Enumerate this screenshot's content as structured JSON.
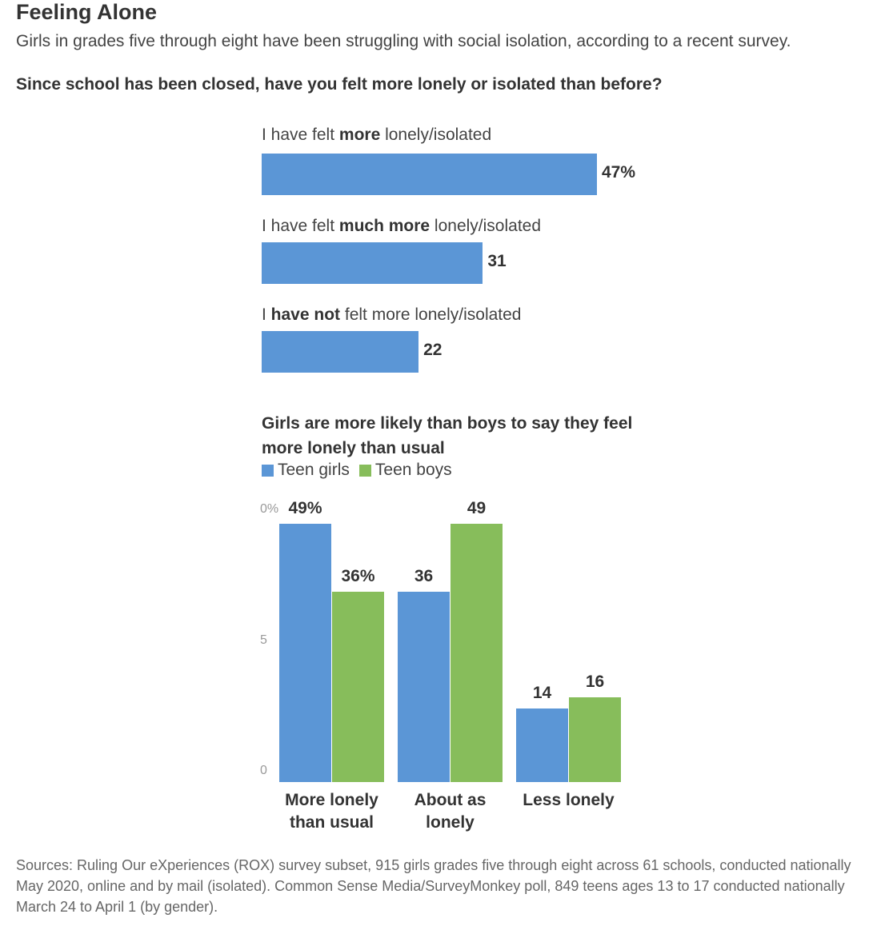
{
  "header": {
    "title": "Feeling Alone",
    "subtitle": "Girls in grades five through eight have been struggling with social isolation, according to a recent survey.",
    "question": "Since school has been closed, have you felt more lonely or isolated than before?"
  },
  "colors": {
    "girls": "#5b96d6",
    "boys": "#87bd5b"
  },
  "chart_data": [
    {
      "type": "bar",
      "orientation": "horizontal",
      "title": "Since school has been closed, have you felt more lonely or isolated than before?",
      "categories": [
        {
          "pre": "I have felt ",
          "bold": "more",
          "post": " lonely/isolated"
        },
        {
          "pre": "I have felt ",
          "bold": "much more",
          "post": " lonely/isolated"
        },
        {
          "pre": "I ",
          "bold": "have not",
          "post": " felt more lonely/isolated"
        }
      ],
      "values": [
        47,
        31,
        22
      ],
      "value_labels": [
        "47%",
        "31",
        "22"
      ],
      "xlim": [
        0,
        47
      ]
    },
    {
      "type": "bar",
      "orientation": "vertical",
      "title": "Girls are more likely than boys to say they feel more lonely than usual",
      "legend": [
        "Teen girls",
        "Teen boys"
      ],
      "categories": [
        "More lonely\nthan usual",
        "About as\nlonely",
        "Less lonely"
      ],
      "series": [
        {
          "name": "Teen girls",
          "values": [
            49,
            36,
            14
          ],
          "labels": [
            "49%",
            "36",
            "14"
          ]
        },
        {
          "name": "Teen boys",
          "values": [
            36,
            49,
            16
          ],
          "labels": [
            "36%",
            "49",
            "16"
          ]
        }
      ],
      "ylim": [
        0,
        50
      ],
      "yticks": [
        "0%",
        "5",
        "0"
      ]
    }
  ],
  "sources": "Sources: Ruling Our eXperiences (ROX) survey subset, 915 girls grades five through eight across 61 schools, conducted nationally May 2020, online and by mail (isolated). Common Sense Media/SurveyMonkey poll, 849 teens ages 13 to 17 conducted nationally March 24 to April 1 (by gender)."
}
